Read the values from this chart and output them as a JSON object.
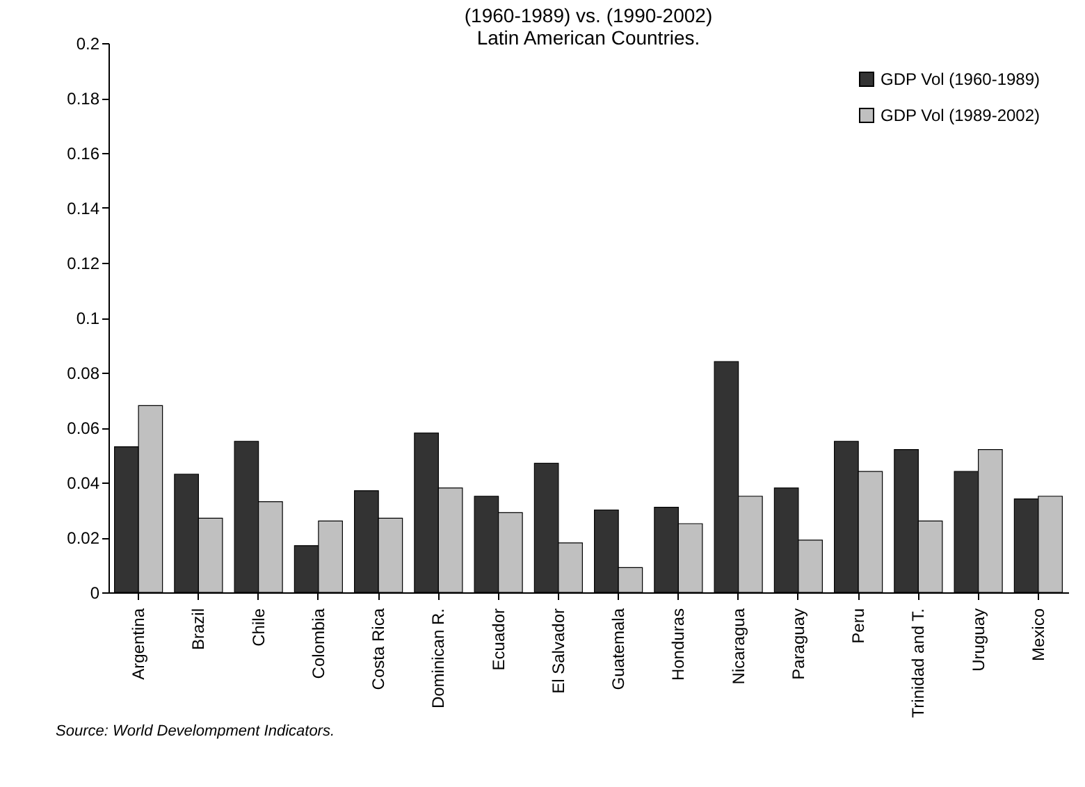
{
  "chart_data": {
    "type": "bar",
    "title": [
      "(1960-1989) vs. (1990-2002)",
      "Latin American Countries."
    ],
    "categories": [
      "Argentina",
      "Brazil",
      "Chile",
      "Colombia",
      "Costa Rica",
      "Dominican R.",
      "Ecuador",
      "El Salvador",
      "Guatemala",
      "Honduras",
      "Nicaragua",
      "Paraguay",
      "Peru",
      "Trinidad and T.",
      "Uruguay",
      "Mexico"
    ],
    "series": [
      {
        "name": "GDP Vol (1960-1989)",
        "color": "#333333",
        "values": [
          0.053,
          0.043,
          0.055,
          0.017,
          0.037,
          0.058,
          0.035,
          0.047,
          0.03,
          0.031,
          0.084,
          0.038,
          0.055,
          0.052,
          0.044,
          0.034
        ]
      },
      {
        "name": "GDP Vol (1989-2002)",
        "color": "#c0c0c0",
        "values": [
          0.068,
          0.027,
          0.033,
          0.026,
          0.027,
          0.038,
          0.029,
          0.018,
          0.009,
          0.025,
          0.035,
          0.019,
          0.044,
          0.026,
          0.052,
          0.035
        ]
      }
    ],
    "ylim": [
      0,
      0.2
    ],
    "yticks": [
      0,
      0.02,
      0.04,
      0.06,
      0.08,
      0.1,
      0.12,
      0.14,
      0.16,
      0.18,
      0.2
    ],
    "grid": false,
    "legend": "top right",
    "annotations": [
      "Source: World Develompment Indicators."
    ]
  }
}
